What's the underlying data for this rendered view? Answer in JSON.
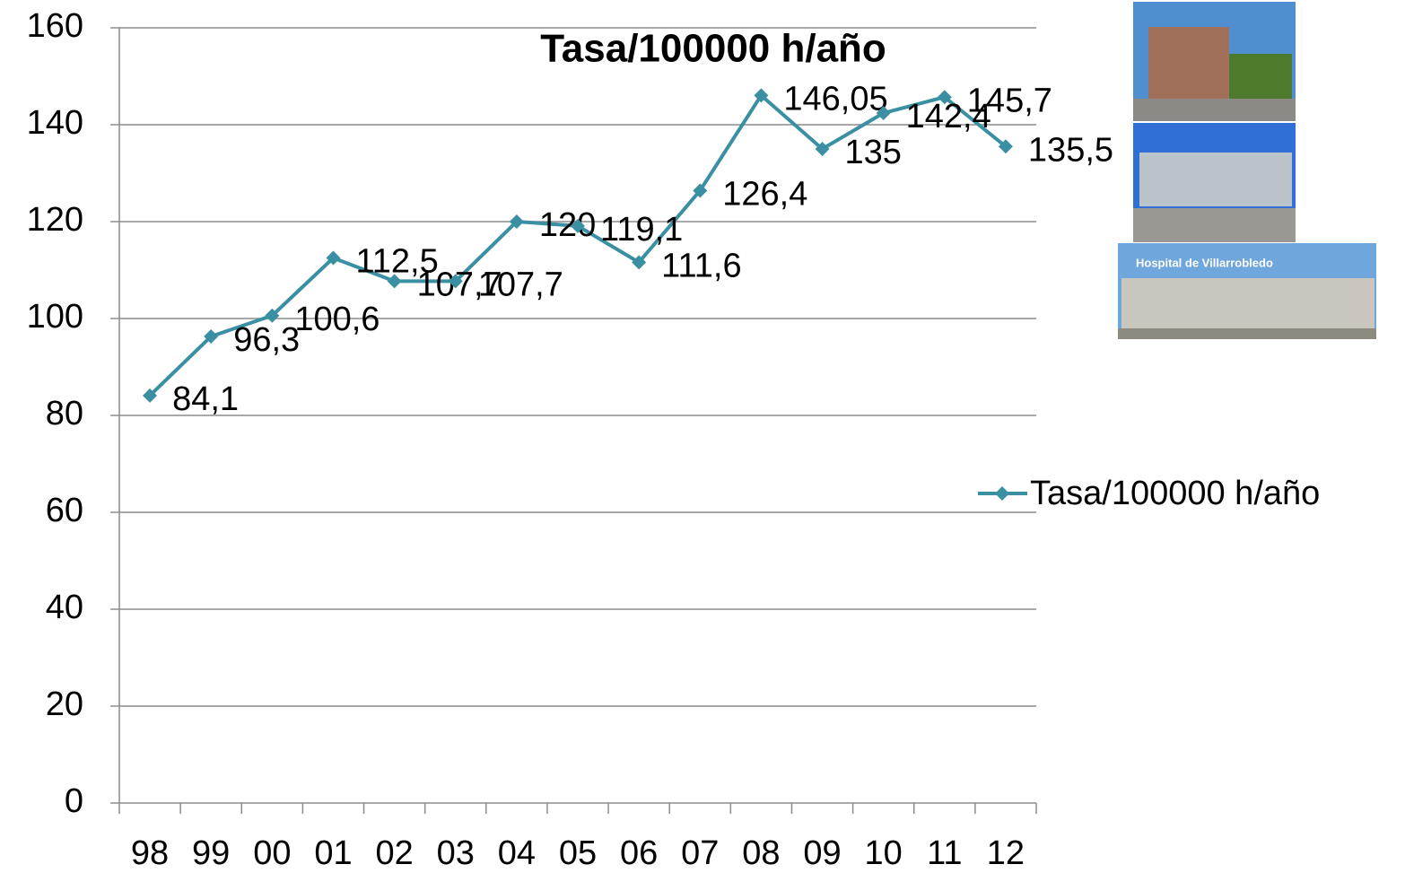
{
  "chart_data": {
    "type": "line",
    "title": "Tasa/100000 h/año",
    "categories": [
      "98",
      "99",
      "00",
      "01",
      "02",
      "03",
      "04",
      "05",
      "06",
      "07",
      "08",
      "09",
      "10",
      "11",
      "12"
    ],
    "series": [
      {
        "name": "Tasa/100000 h/año",
        "color": "#3a8fa3",
        "values": [
          84.1,
          96.3,
          100.6,
          112.5,
          107.7,
          107.7,
          120,
          119.1,
          111.6,
          126.4,
          146.05,
          135,
          142.4,
          145.7,
          135.5
        ],
        "value_labels": [
          "84,1",
          "96,3",
          "100,6",
          "112,5",
          "107,7",
          "107,7",
          "120",
          "119,1",
          "111,6",
          "126,4",
          "146,05",
          "135",
          "142,4",
          "145,7",
          "135,5"
        ]
      }
    ],
    "ylim": [
      0,
      160
    ],
    "yticks": [
      0,
      20,
      40,
      60,
      80,
      100,
      120,
      140,
      160
    ],
    "grid": true,
    "legend": "right",
    "annotations": [
      "Hospital de Villarrobledo"
    ]
  }
}
